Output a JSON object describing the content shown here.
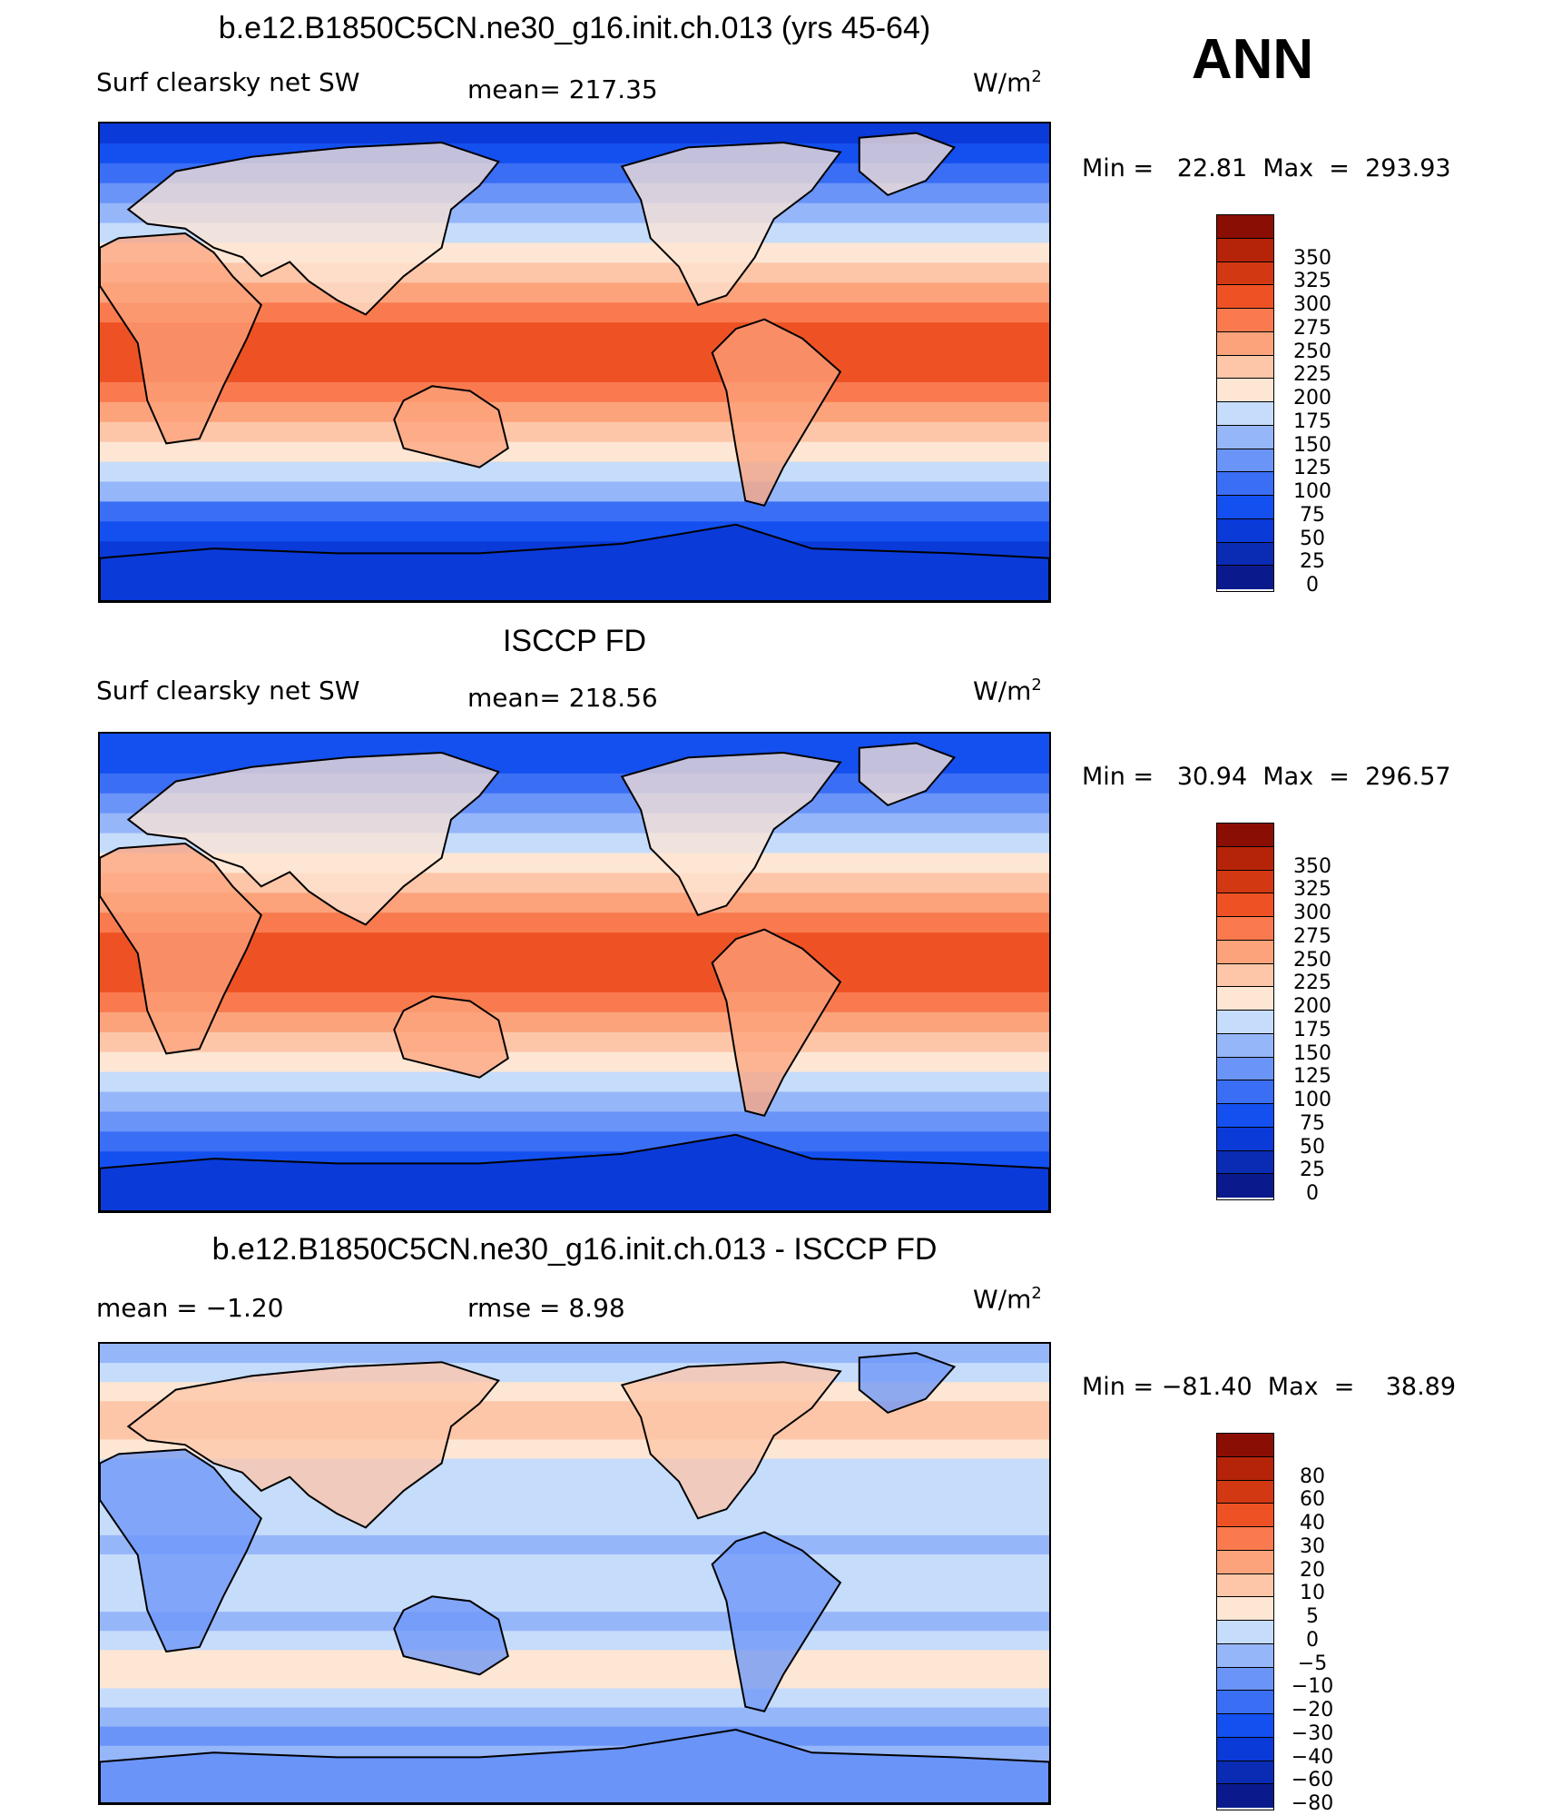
{
  "season": "ANN",
  "panels": [
    {
      "title": "b.e12.B1850C5CN.ne30_g16.init.ch.013 (yrs 45-64)",
      "left_label": "Surf clearsky net SW",
      "center_label": "mean= 217.35",
      "units": "W/m",
      "units_sup": "2",
      "minmax": "Min =   22.81  Max  =  293.93"
    },
    {
      "title": "ISCCP FD",
      "left_label": "Surf clearsky net SW",
      "center_label": "mean= 218.56",
      "units": "W/m",
      "units_sup": "2",
      "minmax": "Min =   30.94  Max  =  296.57"
    },
    {
      "title": "b.e12.B1850C5CN.ne30_g16.init.ch.013 - ISCCP FD",
      "left_label": "mean =   −1.20",
      "center_label": "rmse =     8.98",
      "units": "W/m",
      "units_sup": "2",
      "minmax": "Min = −81.40  Max  =    38.89"
    }
  ],
  "chart_data": [
    {
      "type": "heatmap",
      "title": "b.e12.B1850C5CN.ne30_g16.init.ch.013 (yrs 45-64)",
      "variable": "Surf clearsky net SW",
      "units": "W/m2",
      "mean": 217.35,
      "min": 22.81,
      "max": 293.93,
      "levels": [
        0,
        25,
        50,
        75,
        100,
        125,
        150,
        175,
        200,
        225,
        250,
        275,
        300,
        325,
        350
      ],
      "colors": [
        "#0a1a8c",
        "#0a2cb4",
        "#0a3ad8",
        "#1450f0",
        "#3a6ef5",
        "#6a94f8",
        "#96b6fa",
        "#c6dcfb",
        "#fde6d4",
        "#fdc6a8",
        "#fca37c",
        "#f97a4e",
        "#ee5224",
        "#d23812",
        "#b52408",
        "#8a0e04"
      ]
    },
    {
      "type": "heatmap",
      "title": "ISCCP FD",
      "variable": "Surf clearsky net SW",
      "units": "W/m2",
      "mean": 218.56,
      "min": 30.94,
      "max": 296.57,
      "levels": [
        0,
        25,
        50,
        75,
        100,
        125,
        150,
        175,
        200,
        225,
        250,
        275,
        300,
        325,
        350
      ],
      "colors": [
        "#0a1a8c",
        "#0a2cb4",
        "#0a3ad8",
        "#1450f0",
        "#3a6ef5",
        "#6a94f8",
        "#96b6fa",
        "#c6dcfb",
        "#fde6d4",
        "#fdc6a8",
        "#fca37c",
        "#f97a4e",
        "#ee5224",
        "#d23812",
        "#b52408",
        "#8a0e04"
      ]
    },
    {
      "type": "heatmap",
      "title": "b.e12.B1850C5CN.ne30_g16.init.ch.013 - ISCCP FD",
      "units": "W/m2",
      "mean": -1.2,
      "rmse": 8.98,
      "min": -81.4,
      "max": 38.89,
      "levels": [
        -80,
        -60,
        -40,
        -30,
        -20,
        -10,
        -5,
        0,
        5,
        10,
        20,
        30,
        40,
        60,
        80
      ],
      "level_labels": [
        "−80",
        "−60",
        "−40",
        "−30",
        "−20",
        "−10",
        "−5",
        "0",
        "5",
        "10",
        "20",
        "30",
        "40",
        "60",
        "80"
      ],
      "colors": [
        "#0a1a8c",
        "#0a2cb4",
        "#0a3ad8",
        "#1450f0",
        "#3a6ef5",
        "#6a94f8",
        "#96b6fa",
        "#c6dcfb",
        "#fde6d4",
        "#fdc6a8",
        "#fca37c",
        "#f97a4e",
        "#ee5224",
        "#d23812",
        "#b52408",
        "#8a0e04"
      ]
    }
  ]
}
